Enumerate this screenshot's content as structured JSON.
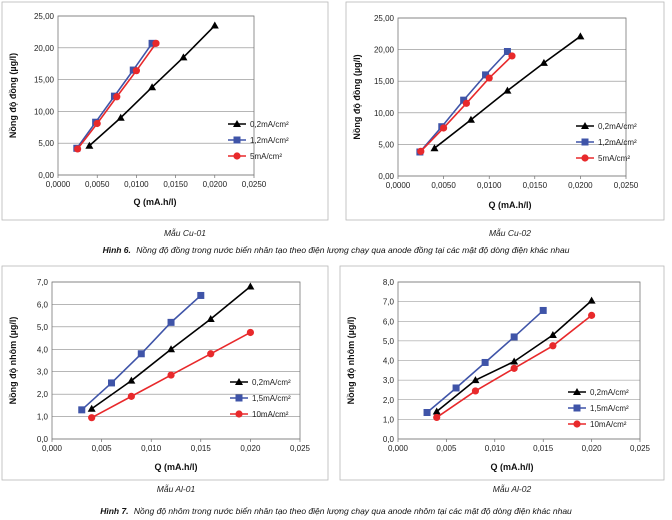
{
  "captions": {
    "fig6_label": "Hình 6.",
    "fig6_text": "Nồng độ đồng trong nước biển nhân tạo theo điện lượng chạy qua anode đồng tại các mật độ dòng điện khác nhau",
    "fig7_label": "Hình 7.",
    "fig7_text": "Nồng độ nhôm trong nước biển nhân tạo theo điện lượng chạy qua anode nhôm tại các mật độ dòng điện khác nhau"
  },
  "chart_data": [
    {
      "type": "line",
      "sample": "Mẫu Cu-01",
      "xlabel": "Q (mA.h/l)",
      "ylabel": "Nồng độ đồng (µg/l)",
      "xlim": [
        0,
        0.025
      ],
      "ylim": [
        0,
        25
      ],
      "xticks": [
        "0,0000",
        "0,0050",
        "0,0100",
        "0,0150",
        "0,0200",
        "0,0250"
      ],
      "yticks": [
        "0,00",
        "5,00",
        "10,00",
        "15,00",
        "20,00",
        "25,00"
      ],
      "grid": true,
      "legend_position": "right",
      "series": [
        {
          "name": "0,2mA/cm²",
          "color": "#000000",
          "marker": "triangle",
          "x": [
            0.004,
            0.008,
            0.012,
            0.016,
            0.02
          ],
          "y": [
            4.6,
            9.0,
            13.8,
            18.5,
            23.5
          ]
        },
        {
          "name": "1,2mA/cm²",
          "color": "#3f54a8",
          "marker": "square",
          "x": [
            0.0024,
            0.0048,
            0.0072,
            0.0096,
            0.012
          ],
          "y": [
            4.2,
            8.3,
            12.4,
            16.5,
            20.7
          ]
        },
        {
          "name": "5mA/cm²",
          "color": "#e8292b",
          "marker": "circle",
          "x": [
            0.0025,
            0.005,
            0.0075,
            0.01,
            0.0125
          ],
          "y": [
            4.1,
            8.1,
            12.3,
            16.4,
            20.7
          ]
        }
      ]
    },
    {
      "type": "line",
      "sample": "Mẫu Cu-02",
      "xlabel": "Q (mA.h/l)",
      "ylabel": "Nồng độ đồng (µg/l)",
      "xlim": [
        0,
        0.025
      ],
      "ylim": [
        0,
        25
      ],
      "xticks": [
        "0,0000",
        "0,0050",
        "0,0100",
        "0,0150",
        "0,0200",
        "0,0250"
      ],
      "yticks": [
        "0,00",
        "5,00",
        "10,00",
        "15,00",
        "20,00",
        "25,00"
      ],
      "grid": true,
      "legend_position": "right",
      "series": [
        {
          "name": "0,2mA/cm²",
          "color": "#000000",
          "marker": "triangle",
          "x": [
            0.004,
            0.008,
            0.012,
            0.016,
            0.02
          ],
          "y": [
            4.4,
            8.9,
            13.5,
            17.9,
            22.1
          ]
        },
        {
          "name": "1,2mA/cm²",
          "color": "#3f54a8",
          "marker": "square",
          "x": [
            0.0024,
            0.0048,
            0.0072,
            0.0096,
            0.012
          ],
          "y": [
            3.8,
            7.8,
            12.0,
            16.0,
            19.7
          ]
        },
        {
          "name": "5mA/cm²",
          "color": "#e8292b",
          "marker": "circle",
          "x": [
            0.0025,
            0.005,
            0.0075,
            0.01,
            0.0125
          ],
          "y": [
            3.9,
            7.6,
            11.5,
            15.5,
            19.0
          ]
        }
      ]
    },
    {
      "type": "line",
      "sample": "Mẫu Al-01",
      "xlabel": "Q (mA.h/l)",
      "ylabel": "Nồng độ nhôm (µg/l)",
      "xlim": [
        0,
        0.025
      ],
      "ylim": [
        0,
        7
      ],
      "xticks": [
        "0,000",
        "0,005",
        "0,010",
        "0,015",
        "0,020",
        "0,025"
      ],
      "yticks": [
        "0,0",
        "1,0",
        "2,0",
        "3,0",
        "4,0",
        "5,0",
        "6,0",
        "7,0"
      ],
      "grid": true,
      "legend_position": "right",
      "series": [
        {
          "name": "0,2mA/cm²",
          "color": "#000000",
          "marker": "triangle",
          "x": [
            0.004,
            0.008,
            0.012,
            0.016,
            0.02
          ],
          "y": [
            1.35,
            2.6,
            4.0,
            5.35,
            6.8
          ]
        },
        {
          "name": "1,5mA/cm²",
          "color": "#3f54a8",
          "marker": "square",
          "x": [
            0.003,
            0.006,
            0.009,
            0.012,
            0.015
          ],
          "y": [
            1.3,
            2.5,
            3.8,
            5.2,
            6.4
          ]
        },
        {
          "name": "10mA/cm²",
          "color": "#e8292b",
          "marker": "circle",
          "x": [
            0.004,
            0.008,
            0.012,
            0.016,
            0.02
          ],
          "y": [
            0.95,
            1.9,
            2.85,
            3.8,
            4.75
          ]
        }
      ]
    },
    {
      "type": "line",
      "sample": "Mẫu Al-02",
      "xlabel": "Q (mA.h/l)",
      "ylabel": "Nồng độ nhôm (µg/l)",
      "xlim": [
        0,
        0.025
      ],
      "ylim": [
        0,
        8
      ],
      "xticks": [
        "0,000",
        "0,005",
        "0,010",
        "0,015",
        "0,020",
        "0,025"
      ],
      "yticks": [
        "0,0",
        "1,0",
        "2,0",
        "3,0",
        "4,0",
        "5,0",
        "6,0",
        "7,0",
        "8,0"
      ],
      "grid": true,
      "legend_position": "right",
      "series": [
        {
          "name": "0,2mA/cm²",
          "color": "#000000",
          "marker": "triangle",
          "x": [
            0.004,
            0.008,
            0.012,
            0.016,
            0.02
          ],
          "y": [
            1.4,
            3.0,
            3.95,
            5.3,
            7.05
          ]
        },
        {
          "name": "1,5mA/cm²",
          "color": "#3f54a8",
          "marker": "square",
          "x": [
            0.003,
            0.006,
            0.009,
            0.012,
            0.015
          ],
          "y": [
            1.35,
            2.6,
            3.9,
            5.2,
            6.55
          ]
        },
        {
          "name": "10mA/cm²",
          "color": "#e8292b",
          "marker": "circle",
          "x": [
            0.004,
            0.008,
            0.012,
            0.016,
            0.02
          ],
          "y": [
            1.1,
            2.45,
            3.6,
            4.75,
            6.3
          ]
        }
      ]
    }
  ]
}
